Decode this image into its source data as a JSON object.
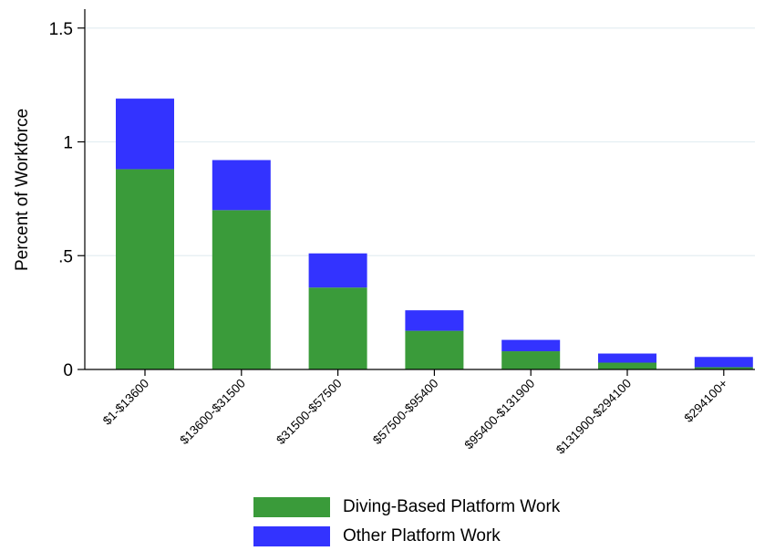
{
  "chart_data": {
    "type": "bar",
    "stacked": true,
    "ylabel": "Percent of Workforce",
    "xlabel": "",
    "ylim": [
      0,
      1.6
    ],
    "yticks": [
      {
        "value": 0,
        "label": "0"
      },
      {
        "value": 0.5,
        "label": ".5"
      },
      {
        "value": 1,
        "label": "1"
      },
      {
        "value": 1.5,
        "label": "1.5"
      }
    ],
    "grid": true,
    "legend_position": "bottom",
    "categories": [
      "$1-$13600",
      "$13600-$31500",
      "$31500-$57500",
      "$57500-$95400",
      "$95400-$131900",
      "$131900-$294100",
      "$294100+"
    ],
    "series": [
      {
        "name": "Diving-Based Platform Work",
        "color": "#3a9b3a",
        "values": [
          0.88,
          0.7,
          0.36,
          0.17,
          0.08,
          0.03,
          0.01
        ]
      },
      {
        "name": "Other Platform Work",
        "color": "#3333ff",
        "values": [
          0.31,
          0.22,
          0.15,
          0.09,
          0.05,
          0.04,
          0.045
        ]
      }
    ]
  }
}
